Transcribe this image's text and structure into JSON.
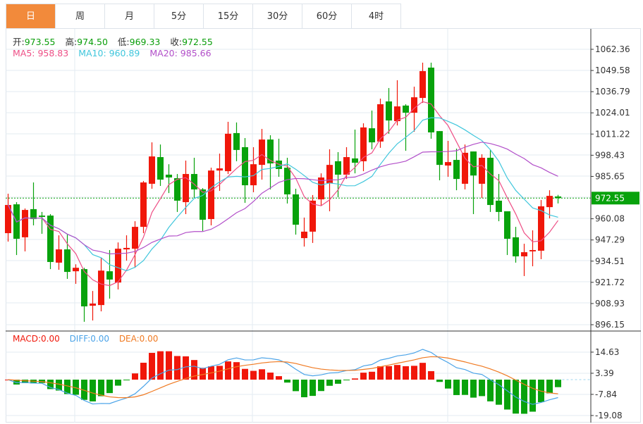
{
  "tabs": [
    {
      "label": "日",
      "active": true
    },
    {
      "label": "周"
    },
    {
      "label": "月"
    },
    {
      "label": "5分"
    },
    {
      "label": "15分"
    },
    {
      "label": "30分"
    },
    {
      "label": "60分"
    },
    {
      "label": "4时"
    }
  ],
  "ohlc": {
    "open_label": "开:",
    "open": "973.55",
    "high_label": "高:",
    "high": "974.50",
    "low_label": "低:",
    "low": "969.33",
    "close_label": "收:",
    "close": "972.55"
  },
  "ma_legend": {
    "ma5": "MA5: 958.83",
    "ma10": "MA10: 960.89",
    "ma20": "MA20: 985.66"
  },
  "macd_legend": {
    "macd": "MACD:0.00",
    "diff": "DIFF:0.00",
    "dea": "DEA:0.00"
  },
  "colors": {
    "up": "#f0170a",
    "down": "#08a20c",
    "ma5": "#ee4f86",
    "ma10": "#3fc6dc",
    "ma20": "#b24fc9",
    "diff": "#4aa3e8",
    "dea": "#f07a22",
    "active_tab": "#f28a3b"
  },
  "chart_data": {
    "type": "candlestick",
    "price_axis": {
      "ticks": [
        "1062.36",
        "1049.58",
        "1036.79",
        "1024.01",
        "1011.22",
        "998.43",
        "985.65",
        "972.55",
        "960.08",
        "947.29",
        "934.51",
        "921.72",
        "908.93",
        "896.15"
      ],
      "range": [
        896.15,
        1062.36
      ]
    },
    "current_price": "972.55",
    "macd_axis": {
      "ticks": [
        "14.63",
        "3.39",
        "-7.84",
        "-19.08"
      ],
      "range": [
        -19.08,
        14.63
      ]
    },
    "ohlc": [
      [
        951.4,
        968.4,
        975.2,
        946.3
      ],
      [
        968.8,
        948.0,
        970.1,
        938.2
      ],
      [
        948.9,
        965.4,
        966.3,
        940.4
      ],
      [
        965.9,
        959.9,
        982.0,
        956.1
      ],
      [
        962.0,
        961.2,
        964.2,
        951.0
      ],
      [
        962.0,
        934.0,
        962.9,
        929.7
      ],
      [
        933.6,
        941.6,
        950.1,
        929.3
      ],
      [
        941.6,
        928.0,
        950.5,
        923.8
      ],
      [
        928.4,
        930.5,
        932.6,
        920.8
      ],
      [
        929.7,
        907.2,
        930.5,
        897.9
      ],
      [
        907.6,
        908.9,
        916.5,
        898.7
      ],
      [
        908.0,
        928.8,
        936.4,
        904.2
      ],
      [
        928.4,
        923.4,
        941.2,
        911.9
      ],
      [
        921.6,
        942.0,
        945.8,
        917.4
      ],
      [
        941.6,
        942.5,
        950.1,
        934.8
      ],
      [
        942.0,
        955.2,
        958.6,
        930.5
      ],
      [
        955.2,
        982.0,
        982.9,
        951.4
      ],
      [
        981.2,
        997.7,
        1006.2,
        978.2
      ],
      [
        997.3,
        983.7,
        1004.9,
        979.9
      ],
      [
        986.7,
        985.0,
        993.0,
        975.6
      ],
      [
        984.6,
        971.0,
        987.1,
        964.2
      ],
      [
        970.1,
        987.1,
        995.2,
        962.9
      ],
      [
        987.1,
        977.8,
        996.9,
        972.6
      ],
      [
        977.8,
        959.5,
        978.6,
        952.7
      ],
      [
        959.9,
        989.2,
        990.9,
        956.1
      ],
      [
        989.2,
        990.5,
        999.4,
        976.9
      ],
      [
        988.8,
        1011.4,
        1018.6,
        987.1
      ],
      [
        1011.8,
        1001.6,
        1018.2,
        994.8
      ],
      [
        1003.3,
        980.3,
        1008.8,
        969.7
      ],
      [
        980.3,
        993.0,
        1003.3,
        976.1
      ],
      [
        992.6,
        1007.9,
        1014.3,
        983.7
      ],
      [
        1007.9,
        993.5,
        1010.5,
        977.8
      ],
      [
        995.2,
        990.1,
        1008.4,
        985.4
      ],
      [
        990.9,
        974.8,
        996.9,
        969.3
      ],
      [
        974.8,
        956.5,
        978.2,
        950.5
      ],
      [
        948.4,
        952.3,
        960.8,
        943.3
      ],
      [
        952.3,
        971.0,
        974.4,
        945.5
      ],
      [
        971.8,
        985.0,
        987.5,
        968.0
      ],
      [
        981.6,
        992.6,
        1002.0,
        964.6
      ],
      [
        994.8,
        986.7,
        1000.3,
        973.1
      ],
      [
        986.7,
        997.3,
        1003.3,
        984.1
      ],
      [
        996.5,
        993.9,
        1013.9,
        987.5
      ],
      [
        994.8,
        1015.2,
        1017.7,
        988.8
      ],
      [
        1014.7,
        1006.2,
        1025.4,
        1002.0
      ],
      [
        1006.7,
        1029.2,
        1032.6,
        1002.9
      ],
      [
        1030.9,
        1019.4,
        1039.0,
        1011.4
      ],
      [
        1019.0,
        1027.9,
        1043.7,
        1016.4
      ],
      [
        1028.4,
        1024.1,
        1029.2,
        1001.1
      ],
      [
        1024.1,
        1033.4,
        1039.8,
        1012.6
      ],
      [
        1033.0,
        1049.2,
        1054.3,
        1030.0
      ],
      [
        1051.3,
        1012.2,
        1054.3,
        1008.4
      ],
      [
        1013.0,
        992.6,
        1013.0,
        983.3
      ],
      [
        992.2,
        994.3,
        1007.1,
        985.4
      ],
      [
        995.6,
        984.1,
        1002.4,
        977.3
      ],
      [
        981.2,
        999.9,
        1004.9,
        977.8
      ],
      [
        1000.7,
        986.2,
        1000.7,
        962.9
      ],
      [
        981.2,
        996.9,
        999.0,
        972.6
      ],
      [
        996.9,
        968.4,
        1001.6,
        964.2
      ],
      [
        971.0,
        964.2,
        987.1,
        958.6
      ],
      [
        964.6,
        948.0,
        964.6,
        938.2
      ],
      [
        948.9,
        937.4,
        955.2,
        933.6
      ],
      [
        937.4,
        939.9,
        945.0,
        925.5
      ],
      [
        940.4,
        941.2,
        953.1,
        931.4
      ],
      [
        940.8,
        967.6,
        971.4,
        935.7
      ],
      [
        967.1,
        973.9,
        977.3,
        960.3
      ],
      [
        973.55,
        972.55,
        974.5,
        969.33
      ]
    ],
    "ohlc_order": [
      "open",
      "close",
      "high",
      "low"
    ],
    "moving_averages": [
      5,
      10,
      20
    ],
    "macd_params": [
      12,
      26,
      9
    ]
  }
}
